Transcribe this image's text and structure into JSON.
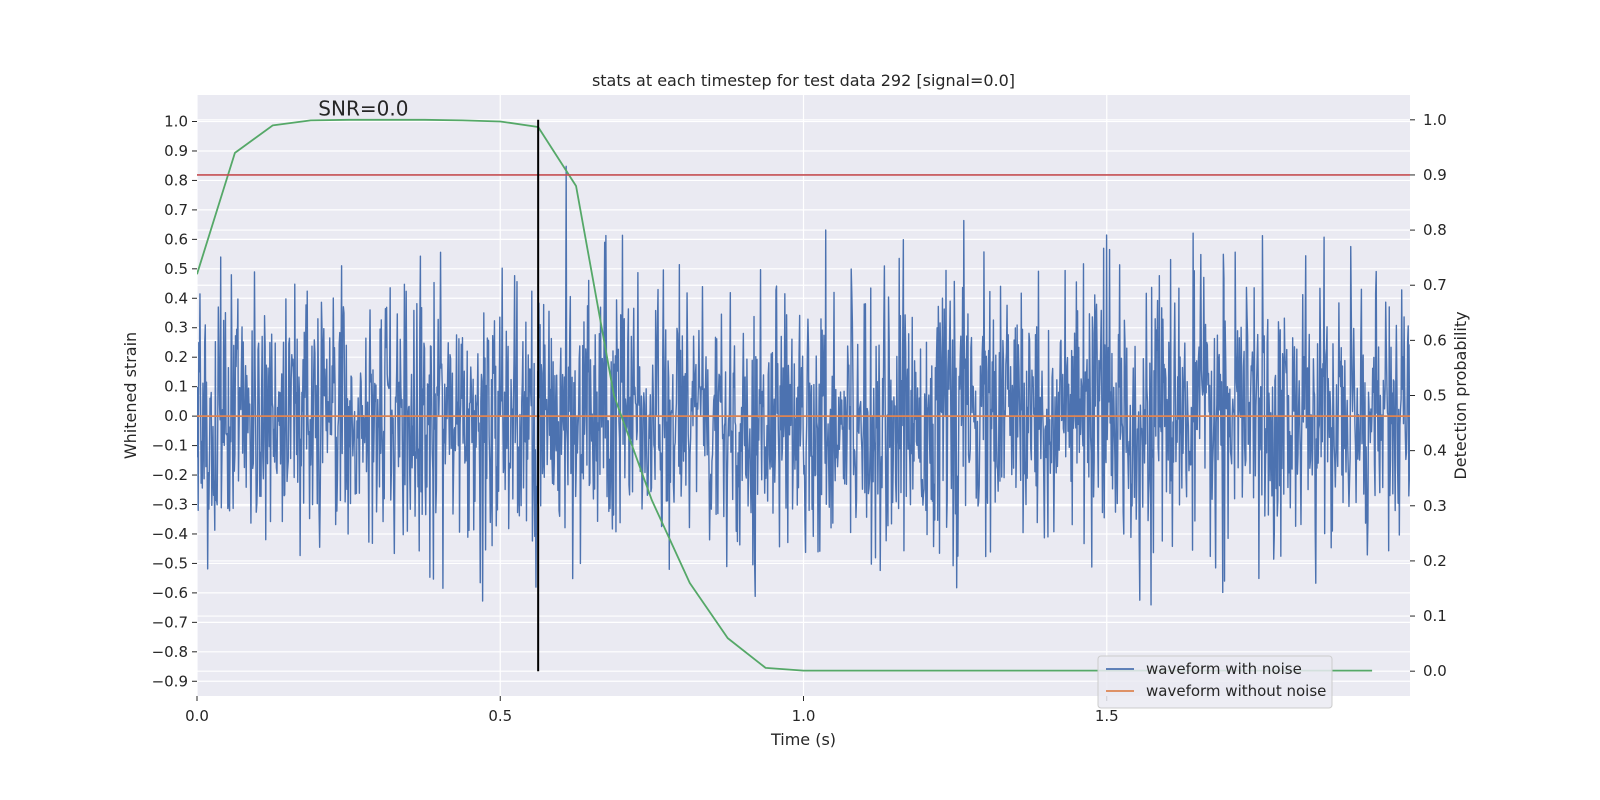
{
  "chart_data": {
    "type": "line",
    "title": "stats at each timestep for test data 292 [signal=0.0]",
    "xlabel": "Time (s)",
    "ylabel": "Whitened strain",
    "y2label": "Detection probability",
    "xlim": [
      0.0,
      2.0
    ],
    "ylim": [
      -0.95,
      1.09
    ],
    "y2lim": [
      -0.045,
      1.045
    ],
    "x_ticks": [
      0.0,
      0.5,
      1.0,
      1.5
    ],
    "x_tick_labels": [
      "0.0",
      "0.5",
      "1.0",
      "1.5"
    ],
    "y_ticks": [
      1.0,
      0.9,
      0.8,
      0.7,
      0.6,
      0.5,
      0.4,
      0.3,
      0.2,
      0.1,
      0.0,
      -0.1,
      -0.2,
      -0.3,
      -0.4,
      -0.5,
      -0.6,
      -0.7,
      -0.8,
      -0.9
    ],
    "y_tick_labels": [
      "1.0",
      "0.9",
      "0.8",
      "0.7",
      "0.6",
      "0.5",
      "0.4",
      "0.3",
      "0.2",
      "0.1",
      "0.0",
      "−0.1",
      "−0.2",
      "−0.3",
      "−0.4",
      "−0.5",
      "−0.6",
      "−0.7",
      "−0.8",
      "−0.9"
    ],
    "y2_ticks": [
      1.0,
      0.9,
      0.8,
      0.7,
      0.6,
      0.5,
      0.4,
      0.3,
      0.2,
      0.1,
      0.0
    ],
    "y2_tick_labels": [
      "1.0",
      "0.9",
      "0.8",
      "0.7",
      "0.6",
      "0.5",
      "0.4",
      "0.3",
      "0.2",
      "0.1",
      "0.0"
    ],
    "grid": true,
    "legend_position": "lower right",
    "annotation": {
      "text": "SNR=0.0",
      "x": 0.2,
      "y": 1.02
    },
    "series": [
      {
        "name": "waveform with noise",
        "color": "#4c72b0",
        "axis": "left",
        "kind": "noise",
        "t_start": 0.0,
        "t_end": 2.0,
        "samples": 2048,
        "std": 0.22,
        "max": 1.0,
        "min": -0.8
      },
      {
        "name": "waveform without noise",
        "color": "#dd8452",
        "axis": "left",
        "x": [
          0.0,
          2.0
        ],
        "y": [
          0.0,
          0.0
        ]
      },
      {
        "color": "#55a868",
        "axis": "right",
        "x": [
          0.0,
          0.0625,
          0.125,
          0.1875,
          0.25,
          0.3125,
          0.375,
          0.4375,
          0.5,
          0.5625,
          0.625,
          0.6875,
          0.75,
          0.8125,
          0.875,
          0.9375,
          1.0,
          1.0625,
          1.125,
          1.1875,
          1.25,
          1.3125,
          1.375,
          1.4375,
          1.5,
          1.5625,
          1.625,
          1.6875,
          1.75,
          1.8125,
          1.875,
          1.9375
        ],
        "y": [
          0.72,
          0.94,
          0.99,
          0.999,
          1.0,
          1.0,
          1.0,
          0.999,
          0.997,
          0.987,
          0.88,
          0.5,
          0.31,
          0.16,
          0.06,
          0.006,
          0.001,
          0.001,
          0.001,
          0.001,
          0.001,
          0.001,
          0.001,
          0.001,
          0.001,
          0.001,
          0.001,
          0.001,
          0.001,
          0.001,
          0.001,
          0.001
        ]
      },
      {
        "color": "#c44e52",
        "axis": "right",
        "kind": "hline",
        "y": 0.9
      },
      {
        "color": "#000000",
        "axis": "right",
        "kind": "vline",
        "x": 0.5625,
        "y_range": [
          0.0,
          1.0
        ]
      }
    ]
  }
}
